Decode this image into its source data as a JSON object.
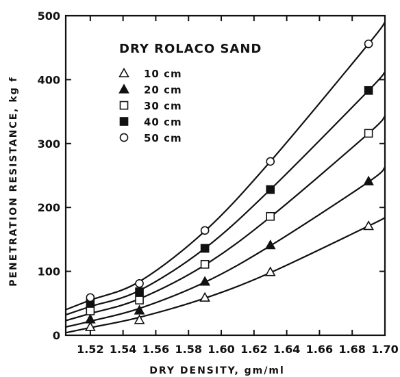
{
  "chart_data": {
    "type": "scatter",
    "title": "",
    "xlabel": "DRY DENSITY, gm/ml",
    "ylabel": "PENETRATION RESISTANCE, kg f",
    "xlim": [
      1.505,
      1.7
    ],
    "ylim": [
      0,
      500
    ],
    "xticks": [
      1.52,
      1.54,
      1.56,
      1.58,
      1.6,
      1.62,
      1.64,
      1.66,
      1.68,
      1.7
    ],
    "xtick_labels": [
      "1.52",
      "1.54",
      "1.56",
      "1.58",
      "1.60",
      "1.62",
      "1.64",
      "1.66",
      "1.68",
      "1.70"
    ],
    "yticks": [
      0,
      100,
      200,
      300,
      400,
      500
    ],
    "ytick_labels": [
      "0",
      "100",
      "200",
      "300",
      "400",
      "500"
    ],
    "grid": false,
    "legend_title": "DRY ROLACO SAND",
    "legend_position": "top-left",
    "series": [
      {
        "name": "10 cm",
        "marker": "triangle-open",
        "points": [
          [
            1.52,
            13
          ],
          [
            1.55,
            24
          ],
          [
            1.59,
            59
          ],
          [
            1.63,
            99
          ],
          [
            1.69,
            171
          ]
        ],
        "curve": [
          [
            1.505,
            4
          ],
          [
            1.52,
            12
          ],
          [
            1.55,
            28
          ],
          [
            1.59,
            58
          ],
          [
            1.63,
            98
          ],
          [
            1.69,
            171
          ],
          [
            1.7,
            184
          ]
        ]
      },
      {
        "name": "20 cm",
        "marker": "triangle-filled",
        "points": [
          [
            1.52,
            25
          ],
          [
            1.55,
            39
          ],
          [
            1.59,
            84
          ],
          [
            1.63,
            141
          ],
          [
            1.69,
            241
          ]
        ],
        "curve": [
          [
            1.505,
            13
          ],
          [
            1.52,
            22
          ],
          [
            1.55,
            42
          ],
          [
            1.59,
            83
          ],
          [
            1.63,
            140
          ],
          [
            1.69,
            240
          ],
          [
            1.7,
            263
          ]
        ]
      },
      {
        "name": "30 cm",
        "marker": "square-open",
        "points": [
          [
            1.52,
            38
          ],
          [
            1.55,
            55
          ],
          [
            1.59,
            111
          ],
          [
            1.63,
            186
          ],
          [
            1.69,
            316
          ]
        ],
        "curve": [
          [
            1.505,
            23
          ],
          [
            1.52,
            34
          ],
          [
            1.55,
            57
          ],
          [
            1.59,
            110
          ],
          [
            1.63,
            185
          ],
          [
            1.69,
            316
          ],
          [
            1.7,
            343
          ]
        ]
      },
      {
        "name": "40 cm",
        "marker": "square-filled",
        "points": [
          [
            1.52,
            50
          ],
          [
            1.55,
            68
          ],
          [
            1.59,
            136
          ],
          [
            1.63,
            228
          ],
          [
            1.69,
            383
          ]
        ],
        "curve": [
          [
            1.505,
            32
          ],
          [
            1.52,
            45
          ],
          [
            1.55,
            70
          ],
          [
            1.59,
            136
          ],
          [
            1.63,
            228
          ],
          [
            1.69,
            383
          ],
          [
            1.7,
            412
          ]
        ]
      },
      {
        "name": "50 cm",
        "marker": "circle-open",
        "points": [
          [
            1.52,
            59
          ],
          [
            1.55,
            81
          ],
          [
            1.59,
            164
          ],
          [
            1.63,
            272
          ],
          [
            1.69,
            456
          ]
        ],
        "curve": [
          [
            1.505,
            40
          ],
          [
            1.52,
            55
          ],
          [
            1.55,
            84
          ],
          [
            1.59,
            163
          ],
          [
            1.63,
            272
          ],
          [
            1.69,
            456
          ],
          [
            1.7,
            490
          ]
        ]
      }
    ]
  }
}
